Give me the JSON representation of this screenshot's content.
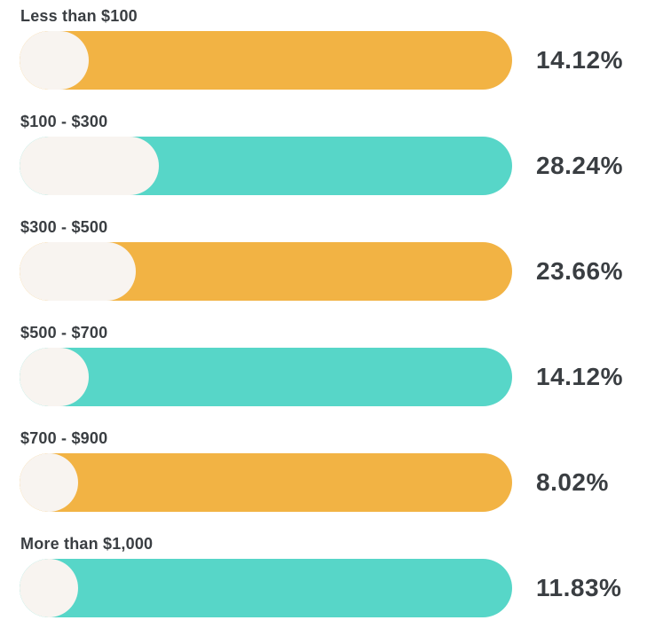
{
  "page": {
    "background": "#ffffff",
    "text_color": "#3A3E42"
  },
  "chart_data": {
    "type": "bar",
    "orientation": "horizontal",
    "title": "",
    "xlabel": "",
    "ylabel": "",
    "grid": false,
    "legend": "none",
    "axis_range": [
      0,
      100
    ],
    "categories": [
      "Less than $100",
      "$100 - $300",
      "$300 - $500",
      "$500 - $700",
      "$700 - $900",
      "More than $1,000"
    ],
    "values": [
      14.12,
      28.24,
      23.66,
      14.12,
      8.02,
      11.83
    ],
    "value_labels": [
      "14.12%",
      "28.24%",
      "23.66%",
      "14.12%",
      "8.02%",
      "11.83%"
    ],
    "bar_colors": [
      "#F2B344",
      "#57D6C8",
      "#F2B344",
      "#57D6C8",
      "#F2B344",
      "#57D6C8"
    ],
    "fill_color": "#F8F4F0",
    "colors": {
      "orange": "#F2B344",
      "teal": "#57D6C8",
      "cream": "#F8F4F0",
      "text": "#3A3E42"
    }
  }
}
